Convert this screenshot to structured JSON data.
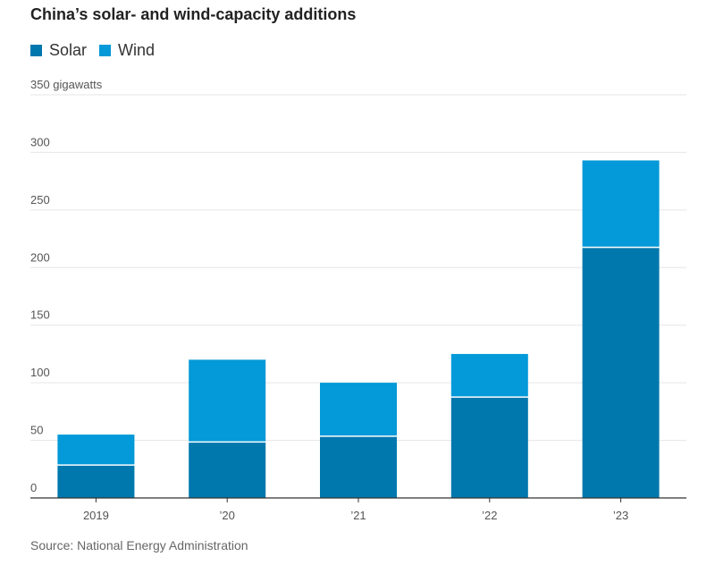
{
  "colors": {
    "solar": "#0078ad",
    "wind": "#0499d8",
    "grid": "#e6e6e6",
    "axis": "#333333"
  },
  "chart_data": {
    "type": "bar",
    "stacked": true,
    "title": "China’s solar- and wind-capacity additions",
    "categories": [
      "2019",
      "’20",
      "’21",
      "’22",
      "’23"
    ],
    "series": [
      {
        "name": "Solar",
        "values": [
          28,
          48,
          53,
          87,
          217
        ]
      },
      {
        "name": "Wind",
        "values": [
          27,
          72,
          47,
          38,
          76
        ]
      }
    ],
    "ylabel_unit": "gigawatts",
    "ylim": [
      0,
      350
    ],
    "yticks": [
      "0",
      "50",
      "100",
      "150",
      "200",
      "250",
      "300",
      "350 gigawatts"
    ],
    "grid": true,
    "legend_position": "top-left",
    "source": "Source: National Energy Administration"
  }
}
